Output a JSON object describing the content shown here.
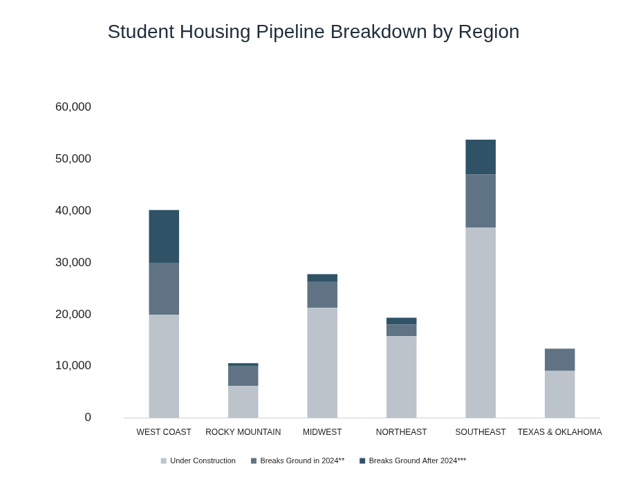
{
  "chart_data": {
    "type": "bar",
    "title": "Student Housing Pipeline Breakdown by Region",
    "categories": [
      "WEST COAST",
      "ROCKY MOUNTAIN",
      "MIDWEST",
      "NORTHEAST",
      "SOUTHEAST",
      "TEXAS & OKLAHOMA"
    ],
    "series": [
      {
        "name": "Under Construction",
        "color": "#bdc3cb",
        "values": [
          20000,
          6200,
          21300,
          15800,
          36800,
          9100
        ]
      },
      {
        "name": "Breaks Ground in 2024**",
        "color": "#5f7384",
        "values": [
          10000,
          3800,
          5100,
          2300,
          10300,
          4300
        ]
      },
      {
        "name": "Breaks Ground After 2024***",
        "color": "#2f5266",
        "values": [
          10200,
          600,
          1400,
          1300,
          6700,
          0
        ]
      }
    ],
    "ylim": [
      0,
      60000
    ],
    "yticks": [
      0,
      {
        "value": 10000,
        "label": "10,000"
      },
      {
        "value": 20000,
        "label": "20,000"
      },
      {
        "value": 30000,
        "label": "30,000"
      },
      {
        "value": 40000,
        "label": "40,000"
      },
      {
        "value": 50000,
        "label": "50,000"
      },
      {
        "value": 60000,
        "label": "60,000"
      }
    ],
    "stacked": true,
    "grid": false,
    "legend": "bottom"
  }
}
